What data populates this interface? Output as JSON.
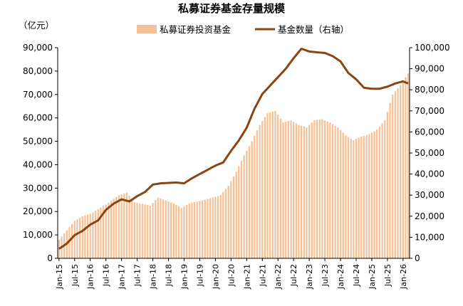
{
  "chart_data": {
    "type": "bar+line",
    "title": "私募证券基金存量规模",
    "y_left_unit": "（亿元）",
    "y_left_range": [
      0,
      90000
    ],
    "y_left_ticks": [
      "0",
      "10,000",
      "20,000",
      "30,000",
      "40,000",
      "50,000",
      "60,000",
      "70,000",
      "80,000",
      "90,000"
    ],
    "y_right_range": [
      0,
      100000
    ],
    "y_right_ticks": [
      "0",
      "10,000",
      "20,000",
      "30,000",
      "40,000",
      "50,000",
      "60,000",
      "70,000",
      "80,000",
      "90,000",
      "100,000"
    ],
    "x_tick_labels": [
      "Jan-15",
      "Jul-15",
      "Jan-16",
      "Jul-16",
      "Jan-17",
      "Jul-17",
      "Jan-18",
      "Jul-18",
      "Jan-19",
      "Jul-19",
      "Jan-20",
      "Jul-20",
      "Jan-21",
      "Jul-21",
      "Jan-22",
      "Jul-22",
      "Jan-23",
      "Jul-23",
      "Jan-24",
      "Jul-24",
      "Jan-25",
      "Jul-25",
      "Jan-26"
    ],
    "grid": false,
    "legend_position": "top-center",
    "colors": {
      "bar": "#F5C196",
      "line": "#8B4513"
    },
    "series": [
      {
        "name": "私募证券投资基金",
        "type": "bar",
        "axis": "left",
        "anchors": [
          [
            "2015-01",
            8000
          ],
          [
            "2015-04",
            12000
          ],
          [
            "2015-07",
            16000
          ],
          [
            "2015-10",
            18000
          ],
          [
            "2016-01",
            19000
          ],
          [
            "2016-07",
            23000
          ],
          [
            "2016-12",
            27000
          ],
          [
            "2017-03",
            28000
          ],
          [
            "2017-06",
            24000
          ],
          [
            "2017-12",
            22500
          ],
          [
            "2018-03",
            26000
          ],
          [
            "2018-09",
            23500
          ],
          [
            "2018-12",
            21500
          ],
          [
            "2019-03",
            23500
          ],
          [
            "2019-09",
            25000
          ],
          [
            "2019-12",
            26000
          ],
          [
            "2020-03",
            27000
          ],
          [
            "2020-06",
            31000
          ],
          [
            "2020-09",
            37000
          ],
          [
            "2020-12",
            44000
          ],
          [
            "2021-03",
            50000
          ],
          [
            "2021-06",
            57000
          ],
          [
            "2021-09",
            62000
          ],
          [
            "2021-12",
            63000
          ],
          [
            "2022-03",
            58000
          ],
          [
            "2022-06",
            59000
          ],
          [
            "2022-09",
            57000
          ],
          [
            "2022-12",
            56000
          ],
          [
            "2023-03",
            59000
          ],
          [
            "2023-06",
            59500
          ],
          [
            "2023-09",
            58000
          ],
          [
            "2023-12",
            56000
          ],
          [
            "2024-03",
            52500
          ],
          [
            "2024-06",
            50500
          ],
          [
            "2024-09",
            52000
          ],
          [
            "2024-12",
            53000
          ],
          [
            "2025-03",
            55000
          ],
          [
            "2025-06",
            59000
          ],
          [
            "2025-09",
            70000
          ],
          [
            "2025-12",
            74000
          ],
          [
            "2026-03",
            79000
          ]
        ]
      },
      {
        "name": "基金数量（右轴）",
        "type": "line",
        "axis": "right",
        "anchors": [
          [
            "2015-01",
            4500
          ],
          [
            "2015-04",
            7000
          ],
          [
            "2015-07",
            11000
          ],
          [
            "2015-10",
            13000
          ],
          [
            "2016-01",
            16000
          ],
          [
            "2016-04",
            18000
          ],
          [
            "2016-07",
            23000
          ],
          [
            "2016-10",
            26000
          ],
          [
            "2017-01",
            28000
          ],
          [
            "2017-04",
            27000
          ],
          [
            "2017-07",
            29500
          ],
          [
            "2017-10",
            31500
          ],
          [
            "2018-01",
            35000
          ],
          [
            "2018-04",
            35600
          ],
          [
            "2018-07",
            35800
          ],
          [
            "2018-10",
            36000
          ],
          [
            "2019-01",
            35600
          ],
          [
            "2019-04",
            38000
          ],
          [
            "2019-07",
            40000
          ],
          [
            "2019-10",
            42000
          ],
          [
            "2020-01",
            44000
          ],
          [
            "2020-04",
            45500
          ],
          [
            "2020-07",
            51000
          ],
          [
            "2020-10",
            56000
          ],
          [
            "2021-01",
            62000
          ],
          [
            "2021-04",
            71000
          ],
          [
            "2021-07",
            78000
          ],
          [
            "2021-10",
            82000
          ],
          [
            "2022-01",
            86000
          ],
          [
            "2022-04",
            90000
          ],
          [
            "2022-07",
            95000
          ],
          [
            "2022-10",
            99500
          ],
          [
            "2023-01",
            98200
          ],
          [
            "2023-04",
            97800
          ],
          [
            "2023-07",
            97500
          ],
          [
            "2023-10",
            96000
          ],
          [
            "2024-01",
            93500
          ],
          [
            "2024-04",
            88000
          ],
          [
            "2024-07",
            85000
          ],
          [
            "2024-10",
            81000
          ],
          [
            "2025-01",
            80500
          ],
          [
            "2025-04",
            80500
          ],
          [
            "2025-07",
            81500
          ],
          [
            "2025-10",
            83000
          ],
          [
            "2026-01",
            84000
          ],
          [
            "2026-03",
            83000
          ]
        ]
      }
    ]
  }
}
